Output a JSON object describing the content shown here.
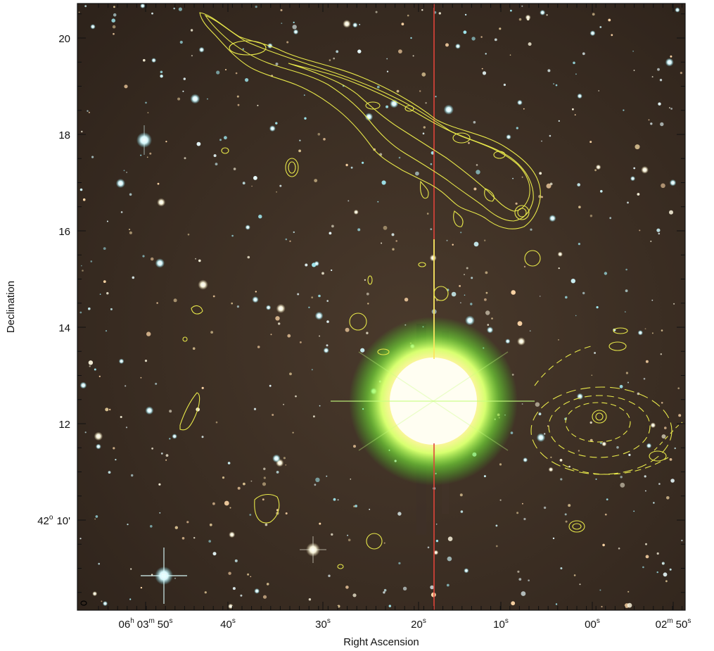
{
  "figure": {
    "x_axis_title": "Right Ascension",
    "y_axis_title": "Declination",
    "colors": {
      "sky_background": "#3a2c22",
      "contour": "#e8e84a",
      "ruler_line_red": "#e0443a",
      "ruler_line_yellow": "#ffff66",
      "star_cyan": "#cdf4f8",
      "bright_star_core": "#fffbe8",
      "bright_star_halo": "#7cff3a"
    },
    "x_ticks": [
      {
        "h": "06",
        "hu": "h",
        "m": "03",
        "mu": "m",
        "s": "50",
        "su": "s"
      },
      {
        "s": "40",
        "su": "s"
      },
      {
        "s": "30",
        "su": "s"
      },
      {
        "s": "20",
        "su": "s"
      },
      {
        "s": "10",
        "su": "s"
      },
      {
        "s": "00",
        "su": "s"
      },
      {
        "m": "02",
        "mu": "m",
        "s": "50",
        "su": "s"
      }
    ],
    "y_ticks": [
      {
        "label": "20"
      },
      {
        "label": "18"
      },
      {
        "label": "16"
      },
      {
        "label": "14"
      },
      {
        "label": "12"
      },
      {
        "deg": "42",
        "deg_unit": "o",
        "label": "10'"
      }
    ]
  }
}
